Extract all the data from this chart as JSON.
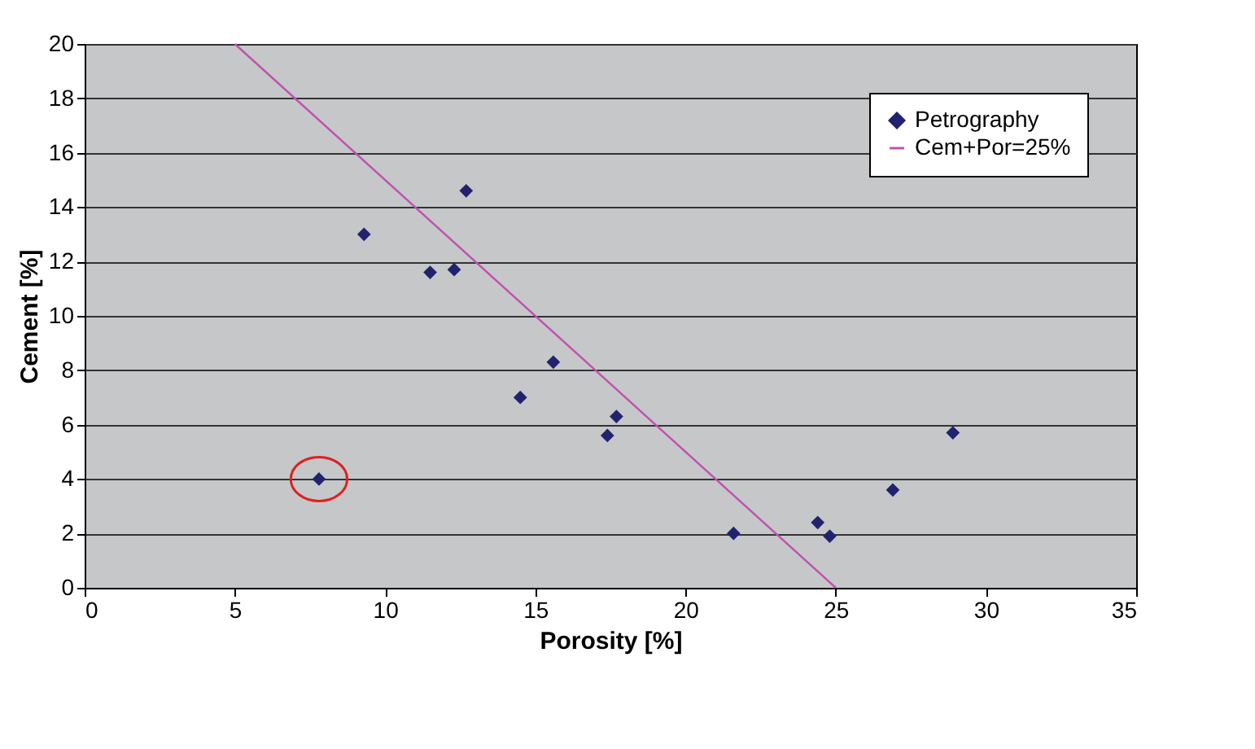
{
  "chart_data": {
    "type": "scatter",
    "xlabel": "Porosity [%]",
    "ylabel": "Cement [%]",
    "series": [
      {
        "name": "Petrography",
        "color": "#22236e",
        "marker": "diamond",
        "x": [
          7.8,
          9.3,
          11.5,
          12.3,
          12.7,
          14.5,
          15.6,
          17.4,
          17.7,
          21.6,
          24.4,
          24.8,
          26.9,
          28.9
        ],
        "values": [
          4.0,
          13.0,
          11.6,
          11.7,
          14.6,
          7.0,
          8.3,
          5.6,
          6.3,
          2.0,
          2.4,
          1.9,
          3.6,
          5.7
        ]
      },
      {
        "name": "Cem+Por=25%",
        "type": "line",
        "color": "#c050b0",
        "x": [
          5,
          25
        ],
        "values": [
          20,
          0
        ]
      }
    ],
    "xlim": [
      0,
      35
    ],
    "xticks": [
      0,
      5,
      10,
      15,
      20,
      25,
      30,
      35
    ],
    "ylim": [
      0,
      20
    ],
    "yticks": [
      0,
      2,
      4,
      6,
      8,
      10,
      12,
      14,
      16,
      18,
      20
    ],
    "grid": "y",
    "legend": "top right"
  }
}
